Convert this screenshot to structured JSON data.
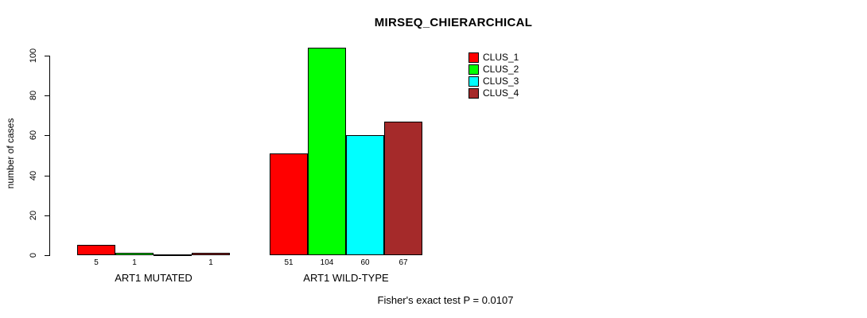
{
  "chart_data": {
    "type": "bar",
    "title": "MIRSEQ_CHIERARCHICAL",
    "ylabel": "number of cases",
    "xlabel": "",
    "categories": [
      "ART1 MUTATED",
      "ART1 WILD-TYPE"
    ],
    "series": [
      {
        "name": "CLUS_1",
        "color": "#ff0000",
        "values": [
          5,
          51
        ]
      },
      {
        "name": "CLUS_2",
        "color": "#00ff00",
        "values": [
          1,
          104
        ]
      },
      {
        "name": "CLUS_3",
        "color": "#00ffff",
        "values": [
          0,
          60
        ]
      },
      {
        "name": "CLUS_4",
        "color": "#a52a2a",
        "values": [
          1,
          67
        ]
      }
    ],
    "bar_value_labels": [
      [
        "5",
        "1",
        "",
        "1"
      ],
      [
        "51",
        "104",
        "60",
        "67"
      ]
    ],
    "yticks": [
      0,
      20,
      40,
      60,
      80,
      100
    ],
    "ylim": [
      0,
      104
    ],
    "grid": false,
    "legend_position": "top-right",
    "annotation": "Fisher's exact test P = 0.0107"
  }
}
